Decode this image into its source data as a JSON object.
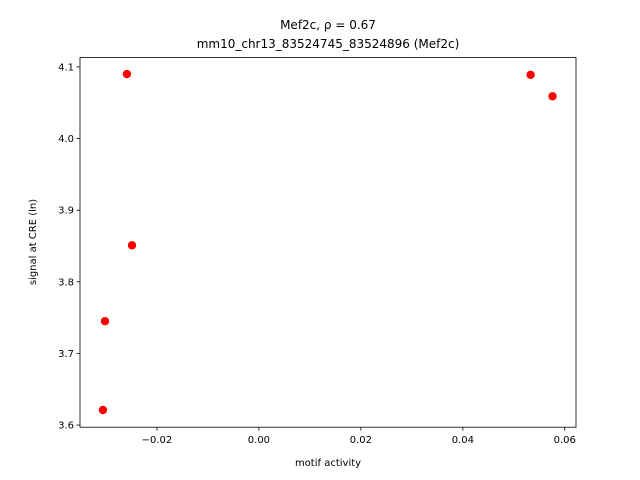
{
  "chart_data": {
    "type": "scatter",
    "title": "Mef2c, ρ = 0.67",
    "subtitle": "mm10_chr13_83524745_83524896 (Mef2c)",
    "x_label": "motif activity",
    "y_label": "signal at CRE (ln)",
    "color": "#ff0000",
    "x": [
      -0.0259,
      -0.0249,
      -0.0302,
      -0.0306,
      0.0533,
      0.0576
    ],
    "values": [
      4.09,
      3.851,
      3.745,
      3.621,
      4.089,
      4.059
    ],
    "xlim": [
      -0.0351,
      0.0622
    ],
    "ylim": [
      3.597,
      4.113
    ],
    "xticks": [
      {
        "value": -0.02,
        "label": "−0.02"
      },
      {
        "value": 0,
        "label": "0.00"
      },
      0.02,
      0.04,
      0.06
    ],
    "yticks": [
      3.6,
      3.7,
      3.8,
      3.9,
      {
        "value": 4,
        "label": "4.0"
      },
      4.1
    ],
    "grid": false
  }
}
